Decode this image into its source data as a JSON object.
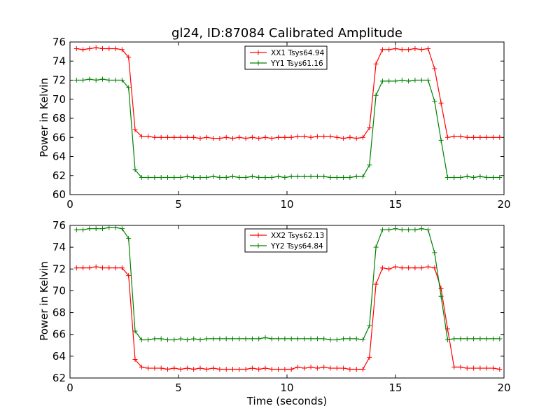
{
  "chart_data": [
    {
      "type": "line",
      "title": "gl24, ID:87084 Calibrated Amplitude",
      "xlabel": "",
      "ylabel": "Power in Kelvin",
      "xlim": [
        0,
        20
      ],
      "ylim": [
        60,
        76
      ],
      "xticks": [
        0,
        5,
        10,
        15,
        20
      ],
      "yticks": [
        60,
        62,
        64,
        66,
        68,
        70,
        72,
        74,
        76
      ],
      "legend_position": "top-center",
      "x": [
        0.3,
        0.6,
        0.9,
        1.2,
        1.5,
        1.8,
        2.1,
        2.4,
        2.7,
        3.0,
        3.3,
        3.6,
        3.9,
        4.2,
        4.5,
        4.8,
        5.1,
        5.4,
        5.7,
        6.0,
        6.3,
        6.6,
        6.9,
        7.2,
        7.5,
        7.8,
        8.1,
        8.4,
        8.7,
        9.0,
        9.3,
        9.6,
        9.9,
        10.2,
        10.5,
        10.8,
        11.1,
        11.4,
        11.7,
        12.0,
        12.3,
        12.6,
        12.9,
        13.2,
        13.5,
        13.8,
        14.1,
        14.4,
        14.7,
        15.0,
        15.3,
        15.6,
        15.9,
        16.2,
        16.5,
        16.8,
        17.1,
        17.4,
        17.7,
        18.0,
        18.3,
        18.6,
        18.9,
        19.2,
        19.5,
        19.8
      ],
      "series": [
        {
          "name": "XX1 Tsys64.94",
          "color": "#ff0000",
          "values": [
            75.3,
            75.2,
            75.3,
            75.4,
            75.3,
            75.3,
            75.3,
            75.2,
            74.4,
            66.8,
            66.1,
            66.1,
            66.0,
            66.0,
            66.0,
            66.0,
            66.0,
            66.0,
            66.0,
            65.9,
            66.0,
            65.9,
            65.9,
            66.0,
            65.9,
            66.0,
            65.9,
            66.0,
            65.9,
            66.0,
            65.9,
            66.0,
            66.0,
            66.0,
            66.1,
            66.1,
            66.0,
            66.1,
            66.1,
            66.1,
            66.0,
            65.9,
            66.0,
            65.9,
            66.0,
            67.0,
            73.7,
            75.2,
            75.2,
            75.3,
            75.2,
            75.2,
            75.3,
            75.2,
            75.3,
            73.2,
            69.6,
            66.0,
            66.1,
            66.1,
            66.0,
            66.0,
            66.0,
            66.0,
            66.0,
            66.0
          ]
        },
        {
          "name": "YY1 Tsys61.16",
          "color": "#008000",
          "values": [
            72.0,
            72.0,
            72.1,
            72.0,
            72.1,
            72.0,
            72.0,
            72.0,
            71.2,
            62.6,
            61.8,
            61.8,
            61.8,
            61.8,
            61.8,
            61.8,
            61.8,
            61.9,
            61.8,
            61.8,
            61.8,
            61.9,
            61.8,
            61.8,
            61.9,
            61.8,
            61.8,
            61.9,
            61.8,
            61.8,
            61.8,
            61.9,
            61.8,
            61.9,
            61.9,
            61.9,
            61.9,
            61.9,
            61.9,
            61.8,
            61.8,
            61.8,
            61.8,
            61.9,
            61.9,
            63.1,
            70.4,
            71.9,
            71.9,
            71.9,
            72.0,
            71.9,
            72.0,
            72.0,
            72.0,
            69.8,
            65.7,
            61.8,
            61.8,
            61.8,
            61.9,
            61.8,
            61.9,
            61.8,
            61.8,
            61.8
          ]
        }
      ]
    },
    {
      "type": "line",
      "title": "",
      "xlabel": "Time (seconds)",
      "ylabel": "Power in Kelvin",
      "xlim": [
        0,
        20
      ],
      "ylim": [
        62,
        76
      ],
      "xticks": [
        0,
        5,
        10,
        15,
        20
      ],
      "yticks": [
        62,
        64,
        66,
        68,
        70,
        72,
        74,
        76
      ],
      "legend_position": "top-center",
      "x": [
        0.3,
        0.6,
        0.9,
        1.2,
        1.5,
        1.8,
        2.1,
        2.4,
        2.7,
        3.0,
        3.3,
        3.6,
        3.9,
        4.2,
        4.5,
        4.8,
        5.1,
        5.4,
        5.7,
        6.0,
        6.3,
        6.6,
        6.9,
        7.2,
        7.5,
        7.8,
        8.1,
        8.4,
        8.7,
        9.0,
        9.3,
        9.6,
        9.9,
        10.2,
        10.5,
        10.8,
        11.1,
        11.4,
        11.7,
        12.0,
        12.3,
        12.6,
        12.9,
        13.2,
        13.5,
        13.8,
        14.1,
        14.4,
        14.7,
        15.0,
        15.3,
        15.6,
        15.9,
        16.2,
        16.5,
        16.8,
        17.1,
        17.4,
        17.7,
        18.0,
        18.3,
        18.6,
        18.9,
        19.2,
        19.5,
        19.8
      ],
      "series": [
        {
          "name": "XX2 Tsys62.13",
          "color": "#ff0000",
          "values": [
            72.1,
            72.1,
            72.1,
            72.2,
            72.1,
            72.1,
            72.1,
            72.1,
            71.4,
            63.7,
            63.0,
            62.9,
            62.9,
            62.9,
            62.8,
            62.9,
            62.8,
            62.9,
            62.8,
            62.9,
            62.8,
            62.9,
            62.8,
            62.8,
            62.8,
            62.8,
            62.8,
            62.9,
            62.8,
            62.9,
            62.8,
            62.8,
            62.8,
            62.8,
            63.0,
            62.9,
            63.0,
            62.9,
            63.0,
            62.9,
            62.9,
            62.9,
            62.8,
            62.8,
            62.8,
            63.9,
            70.6,
            72.1,
            72.0,
            72.2,
            72.1,
            72.1,
            72.1,
            72.1,
            72.2,
            72.1,
            70.2,
            66.5,
            63.0,
            63.0,
            62.9,
            62.9,
            62.9,
            62.9,
            62.9,
            62.8
          ]
        },
        {
          "name": "YY2 Tsys64.84",
          "color": "#008000",
          "values": [
            75.6,
            75.6,
            75.7,
            75.7,
            75.7,
            75.8,
            75.8,
            75.7,
            74.8,
            66.3,
            65.5,
            65.5,
            65.6,
            65.6,
            65.5,
            65.5,
            65.6,
            65.5,
            65.6,
            65.5,
            65.6,
            65.6,
            65.6,
            65.6,
            65.6,
            65.6,
            65.6,
            65.6,
            65.6,
            65.7,
            65.6,
            65.6,
            65.6,
            65.6,
            65.6,
            65.6,
            65.6,
            65.6,
            65.6,
            65.5,
            65.5,
            65.6,
            65.6,
            65.6,
            65.5,
            66.8,
            74.0,
            75.6,
            75.6,
            75.7,
            75.6,
            75.6,
            75.6,
            75.7,
            75.6,
            73.5,
            69.5,
            65.5,
            65.6,
            65.6,
            65.6,
            65.6,
            65.6,
            65.6,
            65.6,
            65.6
          ]
        }
      ]
    }
  ]
}
